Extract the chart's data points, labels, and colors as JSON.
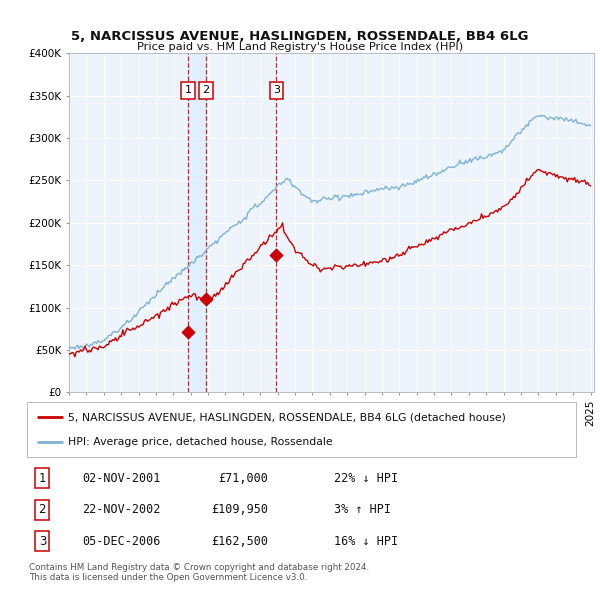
{
  "title1": "5, NARCISSUS AVENUE, HASLINGDEN, ROSSENDALE, BB4 6LG",
  "title2": "Price paid vs. HM Land Registry's House Price Index (HPI)",
  "legend_red": "5, NARCISSUS AVENUE, HASLINGDEN, ROSSENDALE, BB4 6LG (detached house)",
  "legend_blue": "HPI: Average price, detached house, Rossendale",
  "footer1": "Contains HM Land Registry data © Crown copyright and database right 2024.",
  "footer2": "This data is licensed under the Open Government Licence v3.0.",
  "transactions": [
    {
      "num": "1",
      "date": "02-NOV-2001",
      "price": 71000,
      "pct": "22%",
      "dir": "↓",
      "year": 2001.84
    },
    {
      "num": "2",
      "date": "22-NOV-2002",
      "price": 109950,
      "pct": "3%",
      "dir": "↑",
      "year": 2002.89
    },
    {
      "num": "3",
      "date": "05-DEC-2006",
      "price": 162500,
      "pct": "16%",
      "dir": "↓",
      "year": 2006.92
    }
  ],
  "ylim": [
    0,
    400000
  ],
  "yticks": [
    0,
    50000,
    100000,
    150000,
    200000,
    250000,
    300000,
    350000,
    400000
  ],
  "red_color": "#cc0000",
  "blue_color": "#7fb3d3",
  "vline_color": "#cc0000",
  "shade_color": "#ddeeff",
  "background": "#ffffff",
  "chart_bg": "#eef4fb",
  "grid_color": "#ffffff"
}
